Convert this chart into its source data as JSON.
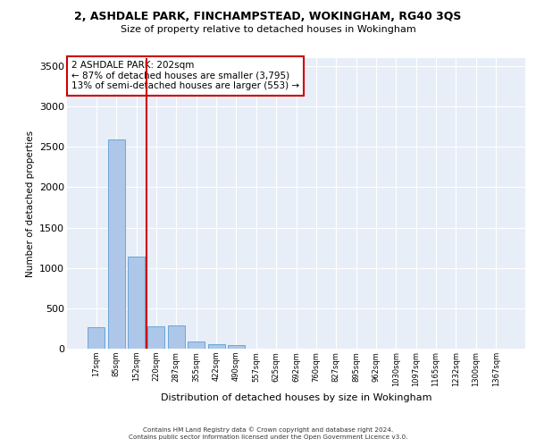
{
  "title_line1": "2, ASHDALE PARK, FINCHAMPSTEAD, WOKINGHAM, RG40 3QS",
  "title_line2": "Size of property relative to detached houses in Wokingham",
  "xlabel": "Distribution of detached houses by size in Wokingham",
  "ylabel": "Number of detached properties",
  "bar_labels": [
    "17sqm",
    "85sqm",
    "152sqm",
    "220sqm",
    "287sqm",
    "355sqm",
    "422sqm",
    "490sqm",
    "557sqm",
    "625sqm",
    "692sqm",
    "760sqm",
    "827sqm",
    "895sqm",
    "962sqm",
    "1030sqm",
    "1097sqm",
    "1165sqm",
    "1232sqm",
    "1300sqm",
    "1367sqm"
  ],
  "bar_values": [
    270,
    2590,
    1140,
    280,
    285,
    90,
    55,
    40,
    0,
    0,
    0,
    0,
    0,
    0,
    0,
    0,
    0,
    0,
    0,
    0,
    0
  ],
  "bar_color": "#aec6e8",
  "bar_edge_color": "#5a9fd4",
  "vline_color": "#cc0000",
  "annotation_text": "2 ASHDALE PARK: 202sqm\n← 87% of detached houses are smaller (3,795)\n13% of semi-detached houses are larger (553) →",
  "ylim": [
    0,
    3600
  ],
  "yticks": [
    0,
    500,
    1000,
    1500,
    2000,
    2500,
    3000,
    3500
  ],
  "background_color": "#e8eef8",
  "grid_color": "#ffffff",
  "footer_line1": "Contains HM Land Registry data © Crown copyright and database right 2024.",
  "footer_line2": "Contains public sector information licensed under the Open Government Licence v3.0."
}
